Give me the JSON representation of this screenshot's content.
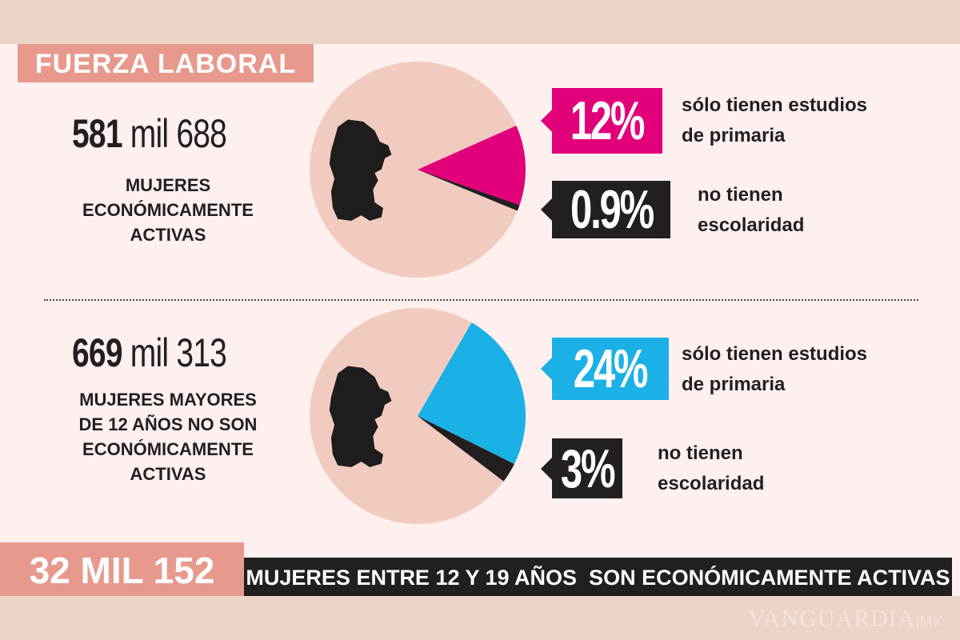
{
  "header": {
    "title": "FUERZA LABORAL"
  },
  "section1": {
    "number_bold": "581",
    "number_rest": " mil 688",
    "description": "MUJERES\nECONÓMICAMENTE\nACTIVAS",
    "labels": [
      {
        "value": "12%",
        "note": "sólo tienen estudios\nde primaria",
        "color": "#e2007a"
      },
      {
        "value": "0.9%",
        "note": "no tienen\nescolaridad",
        "color": "#231f20"
      }
    ]
  },
  "section2": {
    "number_bold": "669",
    "number_rest": " mil 313",
    "description": "MUJERES MAYORES\nDE 12 AÑOS NO SON\nECONÓMICAMENTE\nACTIVAS",
    "labels": [
      {
        "value": "24%",
        "note": "sólo tienen estudios\nde primaria",
        "color": "#1cb1e6"
      },
      {
        "value": "3%",
        "note": "no tienen\nescolaridad",
        "color": "#231f20"
      }
    ]
  },
  "footer": {
    "number": "32 MIL 152",
    "text": "MUJERES ENTRE 12 Y 19 AÑOS  SON ECONÓMICAMENTE ACTIVAS"
  },
  "watermark": "VANGUARDIA MX",
  "chart_data": [
    {
      "type": "pie",
      "categories": [
        "sólo tienen estudios de primaria",
        "no tienen escolaridad",
        "resto"
      ],
      "values": [
        12,
        0.9,
        87.1
      ],
      "colors": [
        "#e2007a",
        "#231f20",
        "#f2cbc0"
      ]
    },
    {
      "type": "pie",
      "categories": [
        "sólo tienen estudios de primaria",
        "no tienen escolaridad",
        "resto"
      ],
      "values": [
        24,
        3,
        73
      ],
      "colors": [
        "#1cb1e6",
        "#231f20",
        "#f2cbc0"
      ]
    }
  ]
}
